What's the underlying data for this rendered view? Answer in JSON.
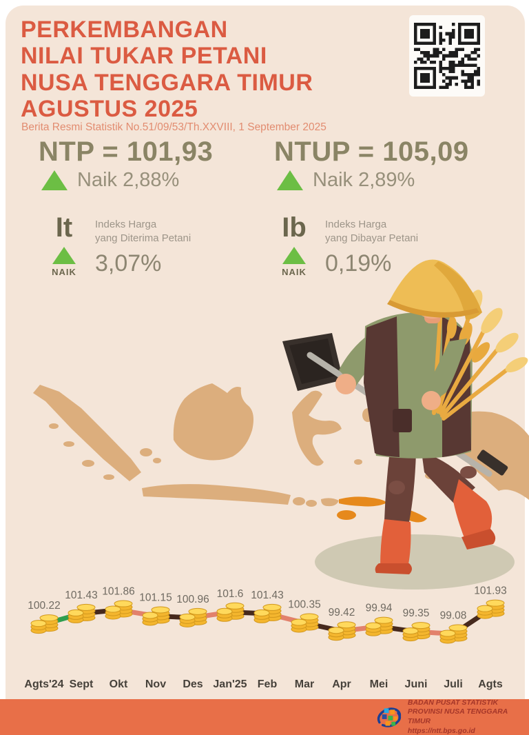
{
  "header": {
    "title_lines": [
      "PERKEMBANGAN",
      "NILAI TUKAR PETANI",
      "NUSA TENGGARA TIMUR",
      "AGUSTUS 2025"
    ],
    "subtitle": "Berita Resmi Statistik No.51/09/53/Th.XXVIII, 1 September 2025"
  },
  "summary": {
    "ntp": {
      "label": "NTP",
      "value": "101,93",
      "display": "NTP = 101,93",
      "change": "Naik 2,88%"
    },
    "ntup": {
      "label": "NTUP",
      "value": "105,09",
      "display": "NTUP = 105,09",
      "change": "Naik 2,89%"
    }
  },
  "indices": {
    "it": {
      "symbol": "It",
      "desc1": "Indeks Harga",
      "desc2": "yang Diterima Petani",
      "direction": "NAIK",
      "value": "3,07%"
    },
    "ib": {
      "symbol": "Ib",
      "desc1": "Indeks Harga",
      "desc2": "yang Dibayar Petani",
      "direction": "NAIK",
      "value": "0,19%"
    }
  },
  "icons": {
    "qr": "qr-code",
    "map": "indonesia-archipelago-map",
    "map_highlight": "Nusa Tenggara Timur",
    "figure": "farmer-with-hoe-and-wheat",
    "marker": "gold-coin-stack",
    "up_arrow": "green-up-triangle"
  },
  "chart_data": {
    "type": "line",
    "series_name": "NTP Nusa Tenggara Timur",
    "categories": [
      "Agts'24",
      "Sept",
      "Okt",
      "Nov",
      "Des",
      "Jan'25",
      "Feb",
      "Mar",
      "Apr",
      "Mei",
      "Juni",
      "Juli",
      "Agts"
    ],
    "values": [
      100.22,
      101.43,
      101.86,
      101.15,
      100.96,
      101.6,
      101.43,
      100.35,
      99.42,
      99.94,
      99.35,
      99.08,
      101.93
    ],
    "labels": [
      "100.22",
      "101.43",
      "101.86",
      "101.15",
      "100.96",
      "101.6",
      "101.43",
      "100.35",
      "99.42",
      "99.94",
      "99.35",
      "99.08",
      "101.93"
    ],
    "ylim": [
      98.8,
      102.3
    ],
    "grid": false,
    "legend": "none",
    "point_marker": "gold-coin-stack",
    "segment_colors": [
      "#2f9e4f",
      "#46291d",
      "#e2816c",
      "#46291d",
      "#e2816c",
      "#46291d",
      "#e2816c",
      "#46291d",
      "#e2816c",
      "#46291d",
      "#e2816c",
      "#46291d"
    ]
  },
  "footer": {
    "org_line1": "BADAN PUSAT STATISTIK",
    "org_line2": "PROVINSI NUSA TENGGARA TIMUR",
    "url": "https://ntt.bps.go.id"
  },
  "colors": {
    "background": "#f4e5d8",
    "title": "#db5b42",
    "subtitle": "#e28c70",
    "headline_value": "#8a8465",
    "up_green": "#6cbe44",
    "map_tan": "#dcae7d",
    "ntt_highlight_orange": "#e6891c",
    "coin_gold": "#f4b62e",
    "footer_orange": "#e86f48",
    "footer_text": "#a53629"
  }
}
